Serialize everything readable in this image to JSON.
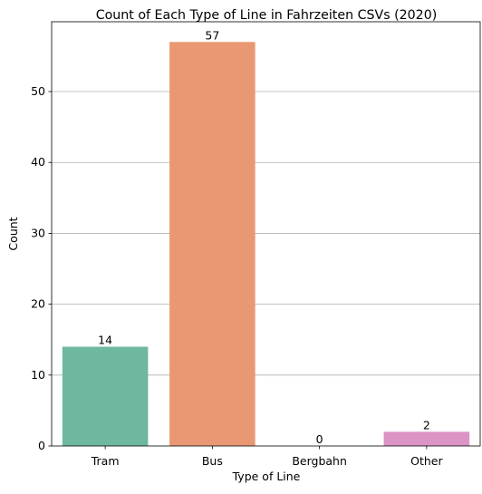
{
  "chart_data": {
    "type": "bar",
    "title": "Count of Each Type of Line in Fahrzeiten CSVs (2020)",
    "xlabel": "Type of Line",
    "ylabel": "Count",
    "categories": [
      "Tram",
      "Bus",
      "Bergbahn",
      "Other"
    ],
    "values": [
      14,
      57,
      0,
      2
    ],
    "data_labels": [
      "14",
      "57",
      "0",
      "2"
    ],
    "colors": [
      "#6fb8a0",
      "#ea9874",
      "#8da0cb",
      "#dc93c5"
    ],
    "ylim": [
      0,
      59.85
    ],
    "yticks": [
      0,
      10,
      20,
      30,
      40,
      50
    ],
    "ytick_labels": [
      "0",
      "10",
      "20",
      "30",
      "40",
      "50"
    ],
    "grid": "y",
    "legend": "none"
  }
}
